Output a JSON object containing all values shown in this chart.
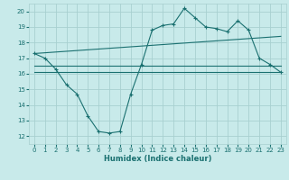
{
  "title": "",
  "xlabel": "Humidex (Indice chaleur)",
  "bg_color": "#c8eaea",
  "grid_color": "#a8d0d0",
  "line_color": "#1a7070",
  "xlim": [
    -0.5,
    23.5
  ],
  "ylim": [
    11.5,
    20.5
  ],
  "xticks": [
    0,
    1,
    2,
    3,
    4,
    5,
    6,
    7,
    8,
    9,
    10,
    11,
    12,
    13,
    14,
    15,
    16,
    17,
    18,
    19,
    20,
    21,
    22,
    23
  ],
  "yticks": [
    12,
    13,
    14,
    15,
    16,
    17,
    18,
    19,
    20
  ],
  "line1_x": [
    0,
    1,
    2,
    3,
    4,
    5,
    6,
    7,
    8,
    9,
    10,
    11,
    12,
    13,
    14,
    15,
    16,
    17,
    18,
    19,
    20,
    21,
    22,
    23
  ],
  "line1_y": [
    17.3,
    17.0,
    16.3,
    15.3,
    14.7,
    13.3,
    12.3,
    12.2,
    12.3,
    14.7,
    16.6,
    18.8,
    19.1,
    19.2,
    20.2,
    19.6,
    19.0,
    18.9,
    18.7,
    19.4,
    18.8,
    17.0,
    16.6,
    16.1
  ],
  "line2_x": [
    0,
    23
  ],
  "line2_y": [
    17.3,
    18.4
  ],
  "line3_x": [
    0,
    23
  ],
  "line3_y": [
    16.1,
    16.1
  ],
  "line4_x": [
    0,
    23
  ],
  "line4_y": [
    16.5,
    16.5
  ]
}
